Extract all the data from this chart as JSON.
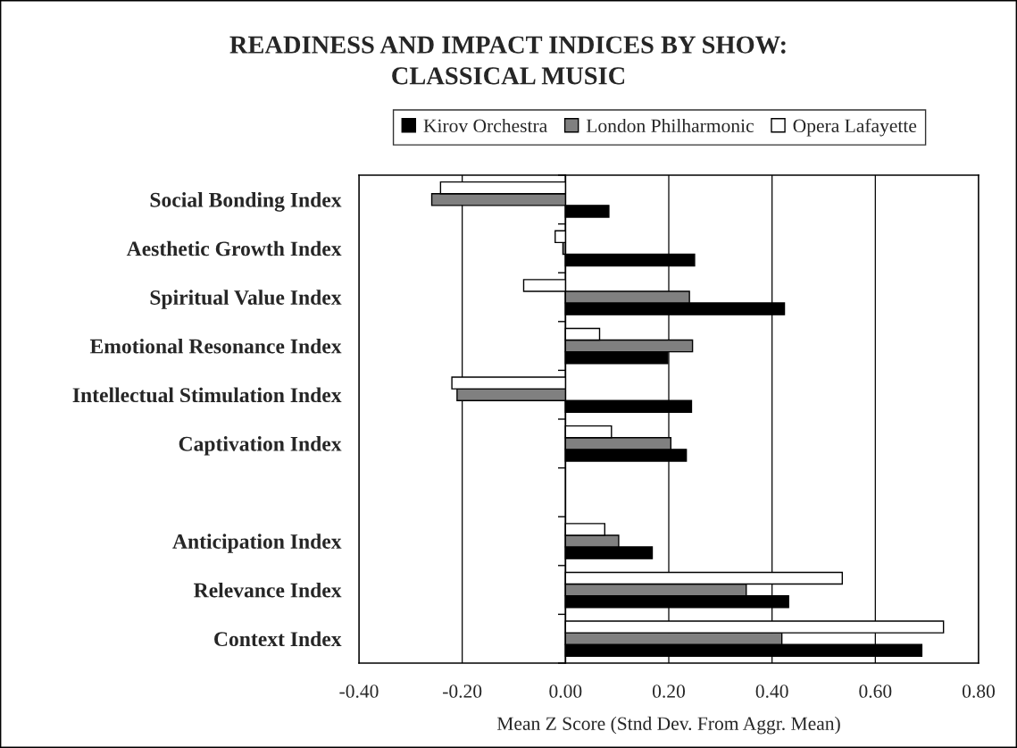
{
  "chart_data": {
    "type": "bar",
    "orientation": "horizontal",
    "title": "READINESS AND IMPACT INDICES BY SHOW:\nCLASSICAL MUSIC",
    "xlabel": "Mean Z Score (Stnd Dev. From Aggr. Mean)",
    "categories": [
      "Social Bonding Index",
      "Aesthetic Growth Index",
      "Spiritual Value Index",
      "Emotional Resonance Index",
      "Intellectual Stimulation Index",
      "Captivation Index",
      null,
      "Anticipation Index",
      "Relevance Index",
      "Context Index"
    ],
    "series": [
      {
        "name": "Kirov Orchestra",
        "color": "#000000",
        "values": [
          0.084,
          0.25,
          0.424,
          0.198,
          0.244,
          0.234,
          null,
          0.168,
          0.432,
          0.69
        ]
      },
      {
        "name": "London Philharmonic",
        "color": "#808080",
        "values": [
          -0.259,
          -0.005,
          0.24,
          0.246,
          -0.21,
          0.204,
          null,
          0.103,
          0.35,
          0.419
        ]
      },
      {
        "name": "Opera Lafayette",
        "color": "#ffffff",
        "values": [
          -0.242,
          -0.02,
          -0.081,
          0.066,
          -0.22,
          0.089,
          null,
          0.076,
          0.536,
          0.732
        ]
      }
    ],
    "xlim": [
      -0.4,
      0.8
    ],
    "xticks": [
      {
        "value": -0.4,
        "label": "-0.40"
      },
      {
        "value": -0.2,
        "label": "-0.20"
      },
      {
        "value": 0.0,
        "label": "0.00"
      },
      {
        "value": 0.2,
        "label": "0.20"
      },
      {
        "value": 0.4,
        "label": "0.40"
      },
      {
        "value": 0.6,
        "label": "0.60"
      },
      {
        "value": 0.8,
        "label": "0.80"
      }
    ],
    "grid": "x",
    "legend": "top"
  }
}
